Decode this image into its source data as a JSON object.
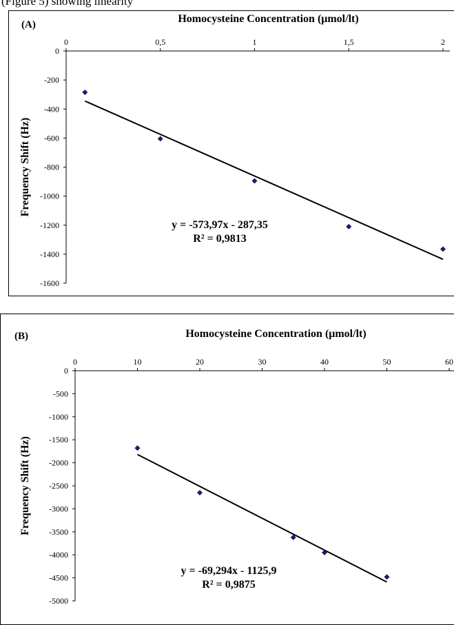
{
  "top_text": "(Figure 5) showing linearity",
  "chart_data": [
    {
      "type": "scatter",
      "panel_label": "(A)",
      "title": "",
      "xlabel": "Homocysteine Concentration (μmol/lt)",
      "ylabel": "Frequency Shift (Hz)",
      "xlim": [
        0,
        2
      ],
      "ylim": [
        -1600,
        0
      ],
      "x_ticks": [
        "0",
        "0,5",
        "1",
        "1,5",
        "2"
      ],
      "x_tick_values": [
        0,
        0.5,
        1,
        1.5,
        2
      ],
      "y_ticks": [
        "0",
        "-200",
        "-400",
        "-600",
        "-800",
        "-1000",
        "-1200",
        "-1400",
        "-1600"
      ],
      "y_tick_values": [
        0,
        -200,
        -400,
        -600,
        -800,
        -1000,
        -1200,
        -1400,
        -1600
      ],
      "x_axis_position": "top",
      "grid": false,
      "series": [
        {
          "x": [
            0.1,
            0.5,
            1,
            1.5,
            2
          ],
          "y": [
            -285,
            -605,
            -895,
            -1210,
            -1365
          ],
          "color": "#1a1a6e"
        }
      ],
      "trendline": {
        "slope": -573.97,
        "intercept": -287.35,
        "x_range": [
          0.1,
          2
        ]
      },
      "equation": "y = -573,97x - 287,35",
      "r_squared": "R² = 0,9813"
    },
    {
      "type": "scatter",
      "panel_label": "(B)",
      "title": "",
      "xlabel": "Homocysteine Concentration (μmol/lt)",
      "ylabel": "Frequency Shift (Hz)",
      "xlim": [
        0,
        60
      ],
      "ylim": [
        -5000,
        0
      ],
      "x_ticks": [
        "0",
        "10",
        "20",
        "30",
        "40",
        "50",
        "60"
      ],
      "x_tick_values": [
        0,
        10,
        20,
        30,
        40,
        50,
        60
      ],
      "y_ticks": [
        "0",
        "-500",
        "-1000",
        "-1500",
        "-2000",
        "-2500",
        "-3000",
        "-3500",
        "-4000",
        "-4500",
        "-5000"
      ],
      "y_tick_values": [
        0,
        -500,
        -1000,
        -1500,
        -2000,
        -2500,
        -3000,
        -3500,
        -4000,
        -4500,
        -5000
      ],
      "x_axis_position": "top",
      "grid": false,
      "series": [
        {
          "x": [
            10,
            20,
            35,
            40,
            50
          ],
          "y": [
            -1680,
            -2650,
            -3620,
            -3950,
            -4480
          ],
          "color": "#1a1a6e"
        }
      ],
      "trendline": {
        "slope": -69.294,
        "intercept": -1125.9,
        "x_range": [
          10,
          50
        ]
      },
      "equation": "y = -69,294x - 1125,9",
      "r_squared": "R² = 0,9875"
    }
  ]
}
